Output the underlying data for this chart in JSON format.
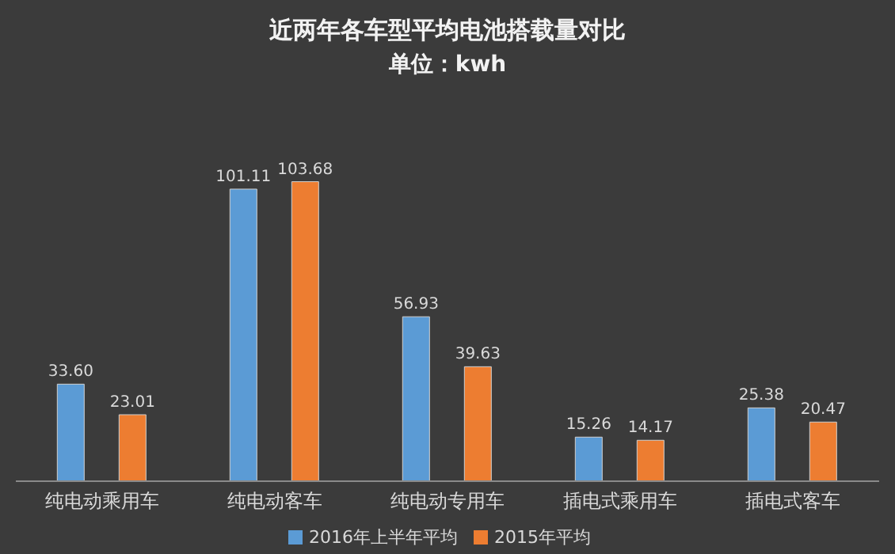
{
  "chart_data": {
    "type": "bar",
    "title": "近两年各车型平均电池搭载量对比",
    "subtitle": "单位：kwh",
    "categories": [
      "纯电动乘用车",
      "纯电动客车",
      "纯电动专用车",
      "插电式乘用车",
      "插电式客车"
    ],
    "series": [
      {
        "name": "2016年上半年平均",
        "color": "#5b9bd5",
        "values": [
          33.6,
          101.11,
          56.93,
          15.26,
          25.38
        ],
        "value_labels": [
          "33.60",
          "101.11",
          "56.93",
          "15.26",
          "25.38"
        ]
      },
      {
        "name": "2015年平均",
        "color": "#ed7d31",
        "values": [
          23.01,
          103.68,
          39.63,
          14.17,
          20.47
        ],
        "value_labels": [
          "23.01",
          "103.68",
          "39.63",
          "14.17",
          "20.47"
        ]
      }
    ],
    "grid": false,
    "legend": "bottom"
  }
}
